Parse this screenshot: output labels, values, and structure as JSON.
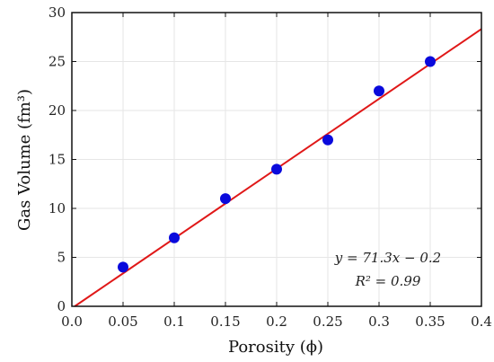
{
  "chart_data": {
    "type": "scatter",
    "title": "",
    "xlabel": "Porosity (ϕ)",
    "ylabel": "Gas Volume (fm³)",
    "xlim": [
      0.0,
      0.4
    ],
    "ylim": [
      0,
      30
    ],
    "xticks": [
      0.0,
      0.05,
      0.1,
      0.15,
      0.2,
      0.25,
      0.3,
      0.35,
      0.4
    ],
    "xtick_labels": [
      "0.0",
      "0.05",
      "0.1",
      "0.15",
      "0.2",
      "0.25",
      "0.3",
      "0.35",
      "0.4"
    ],
    "yticks": [
      0,
      5,
      10,
      15,
      20,
      25,
      30
    ],
    "ytick_labels": [
      "0",
      "5",
      "10",
      "15",
      "20",
      "25",
      "30"
    ],
    "grid": true,
    "series": [
      {
        "type": "scatter",
        "color": "#0a0adc",
        "x": [
          0.05,
          0.1,
          0.15,
          0.2,
          0.25,
          0.3,
          0.35
        ],
        "y": [
          4,
          7,
          11,
          14,
          17,
          22,
          25
        ]
      },
      {
        "type": "line",
        "color": "#e01818",
        "slope": 71.3,
        "intercept": -0.2
      }
    ],
    "annotations": {
      "equation": "y = 71.3x − 0.2",
      "r_squared": "R² = 0.99"
    }
  }
}
